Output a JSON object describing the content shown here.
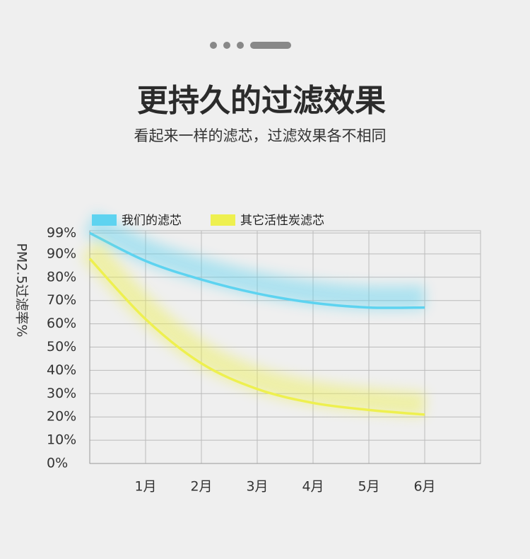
{
  "chart_data": {
    "type": "line",
    "title": "更持久的过滤效果",
    "subtitle": "看起来一样的滤芯，过滤效果各不相同",
    "y_label": "PM2.5过滤率%",
    "x": [
      0,
      1,
      2,
      3,
      4,
      5,
      6
    ],
    "series": [
      {
        "name": "我们的滤芯",
        "color": "#5dd3f0",
        "values": [
          99,
          87,
          79,
          73,
          69,
          67,
          67
        ]
      },
      {
        "name": "其它活性炭滤芯",
        "color": "#eef04f",
        "values": [
          88,
          62,
          43,
          32,
          26,
          23,
          21
        ]
      }
    ],
    "xlim": [
      0,
      7
    ],
    "xticks": [
      {
        "value": 1,
        "label": "1月"
      },
      {
        "value": 2,
        "label": "2月"
      },
      {
        "value": 3,
        "label": "3月"
      },
      {
        "value": 4,
        "label": "4月"
      },
      {
        "value": 5,
        "label": "5月"
      },
      {
        "value": 6,
        "label": "6月"
      }
    ],
    "ylim": [
      0,
      100
    ],
    "yticks": [
      {
        "value": 0,
        "label": "0%"
      },
      {
        "value": 10,
        "label": "10%"
      },
      {
        "value": 20,
        "label": "20%"
      },
      {
        "value": 30,
        "label": "30%"
      },
      {
        "value": 40,
        "label": "40%"
      },
      {
        "value": 50,
        "label": "50%"
      },
      {
        "value": 60,
        "label": "60%"
      },
      {
        "value": 70,
        "label": "70%"
      },
      {
        "value": 80,
        "label": "80%"
      },
      {
        "value": 90,
        "label": "90%"
      },
      {
        "value": 99,
        "label": "99%"
      }
    ],
    "grid": true
  }
}
